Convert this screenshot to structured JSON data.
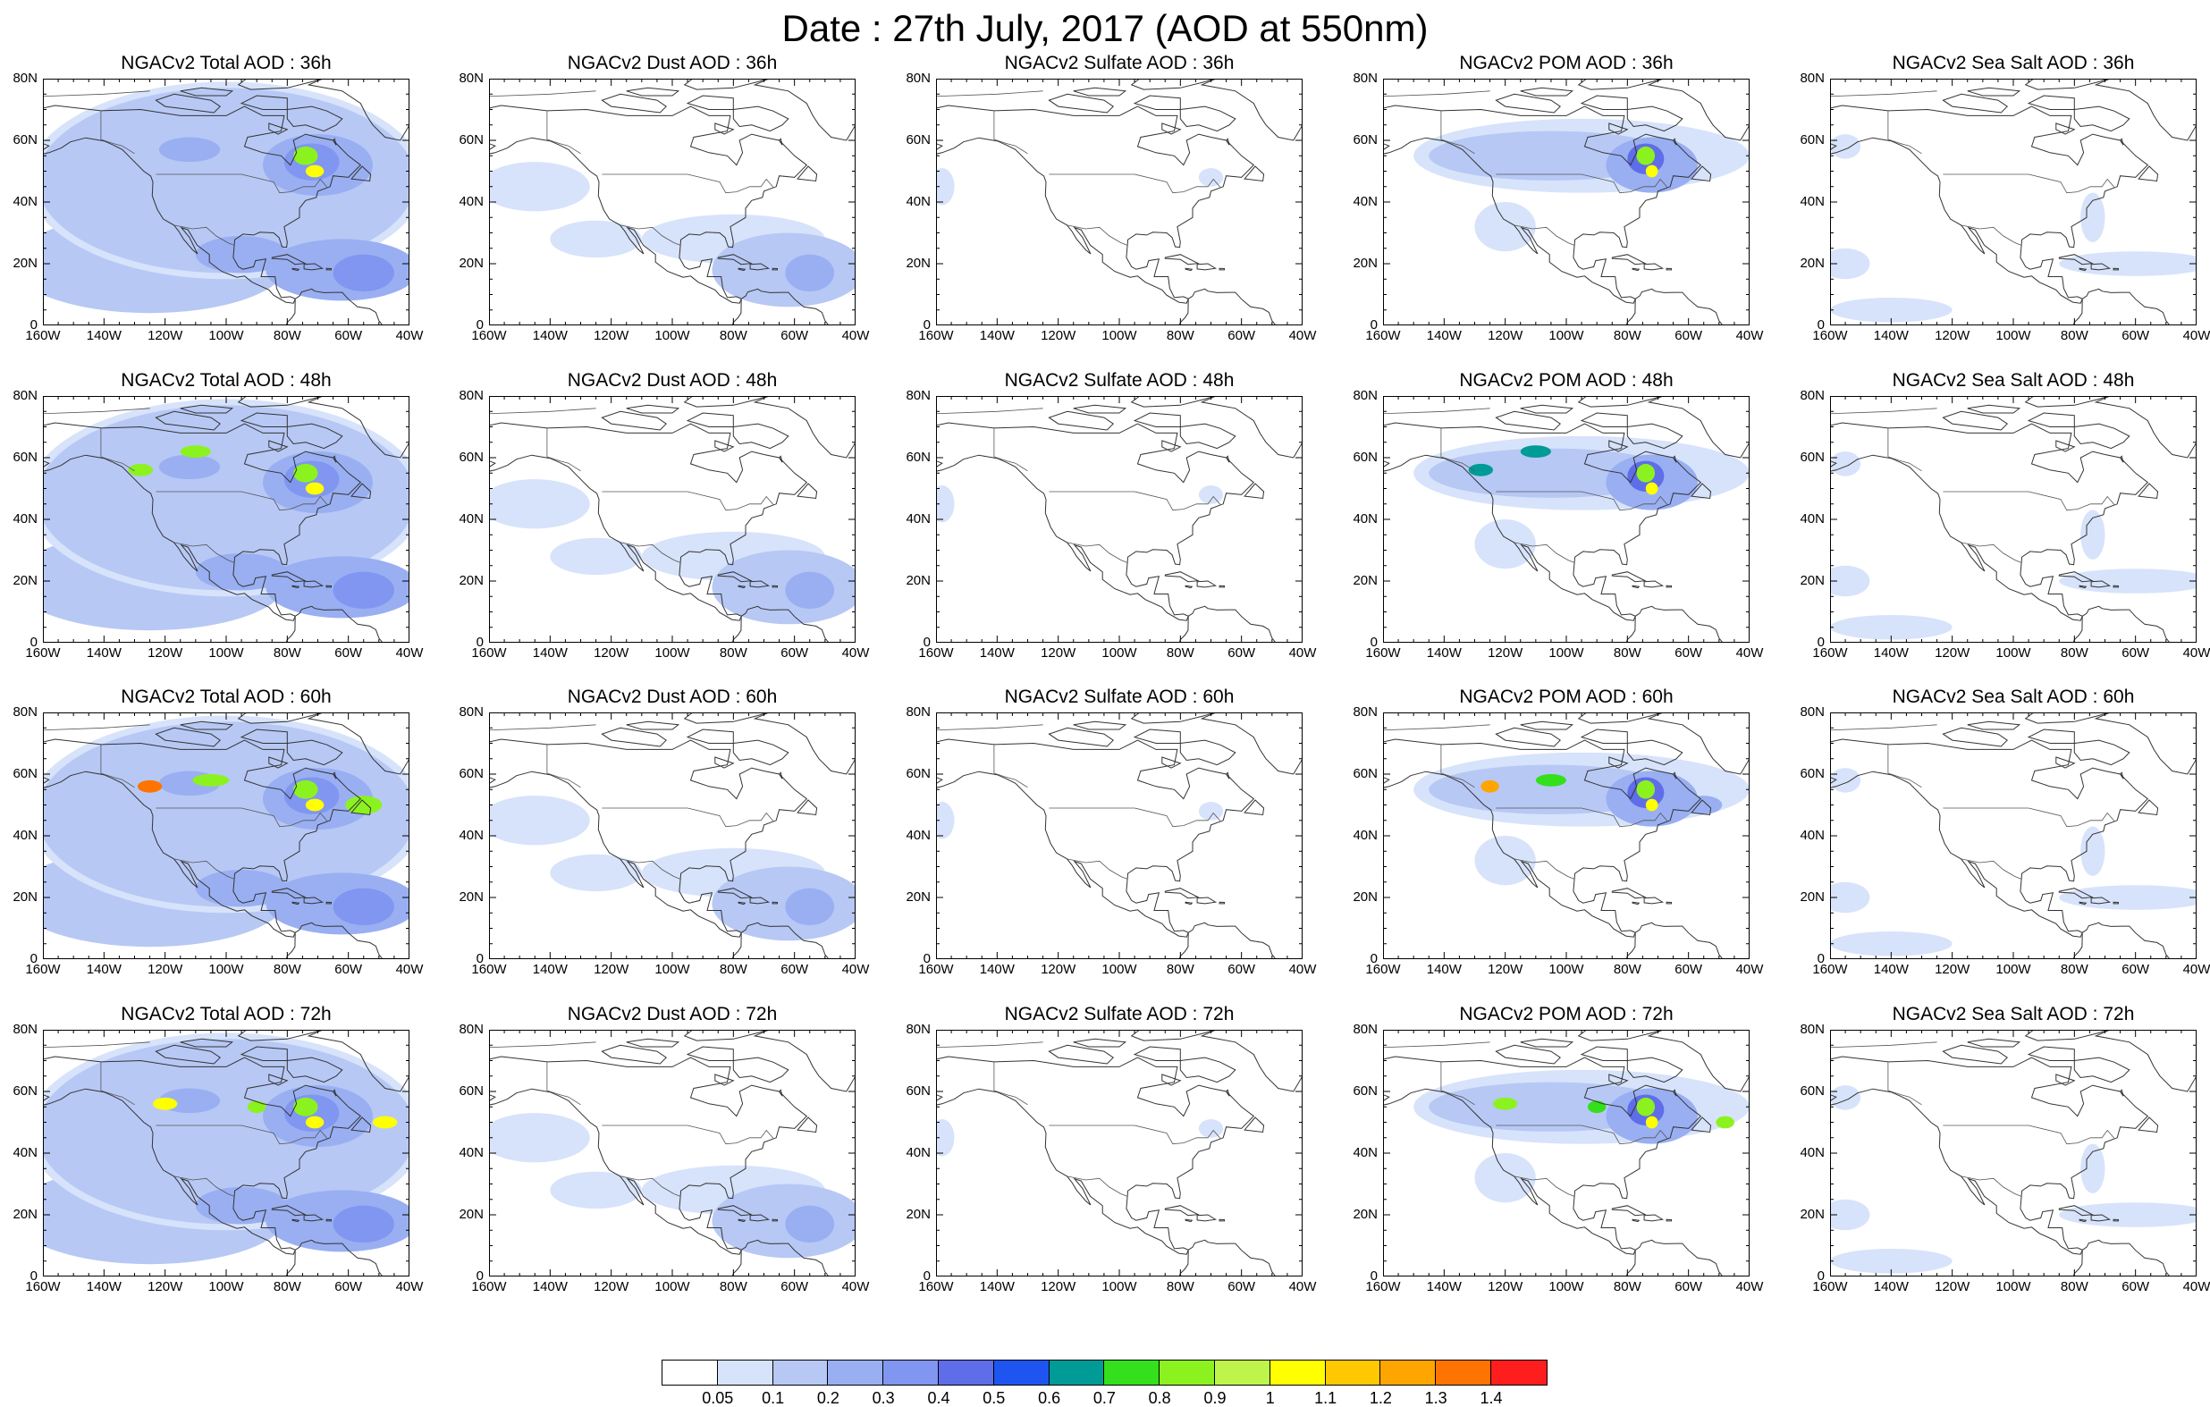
{
  "title": "Date : 27th July, 2017 (AOD at 550nm)",
  "lat_labels": [
    "80N",
    "60N",
    "40N",
    "20N",
    "0"
  ],
  "lon_labels": [
    "160W",
    "140W",
    "120W",
    "100W",
    "80W",
    "60W",
    "40W"
  ],
  "species": [
    {
      "id": "total",
      "label": "NGACv2 Total AOD"
    },
    {
      "id": "dust",
      "label": "NGACv2 Dust AOD"
    },
    {
      "id": "sulfate",
      "label": "NGACv2 Sulfate AOD"
    },
    {
      "id": "pom",
      "label": "NGACv2 POM AOD"
    },
    {
      "id": "seasalt",
      "label": "NGACv2 Sea Salt AOD"
    }
  ],
  "panels": [
    [
      {
        "title": "NGACv2 Total AOD : 36h"
      },
      {
        "title": "NGACv2 Dust AOD : 36h"
      },
      {
        "title": "NGACv2 Sulfate AOD : 36h"
      },
      {
        "title": "NGACv2 POM AOD : 36h"
      },
      {
        "title": "NGACv2 Sea Salt AOD : 36h"
      }
    ],
    [
      {
        "title": "NGACv2 Total AOD : 48h"
      },
      {
        "title": "NGACv2 Dust AOD : 48h"
      },
      {
        "title": "NGACv2 Sulfate AOD : 48h"
      },
      {
        "title": "NGACv2 POM AOD : 48h"
      },
      {
        "title": "NGACv2 Sea Salt AOD : 48h"
      }
    ],
    [
      {
        "title": "NGACv2 Total AOD : 60h"
      },
      {
        "title": "NGACv2 Dust AOD : 60h"
      },
      {
        "title": "NGACv2 Sulfate AOD : 60h"
      },
      {
        "title": "NGACv2 POM AOD : 60h"
      },
      {
        "title": "NGACv2 Sea Salt AOD : 60h"
      }
    ],
    [
      {
        "title": "NGACv2 Total AOD : 72h"
      },
      {
        "title": "NGACv2 Dust AOD : 72h"
      },
      {
        "title": "NGACv2 Sulfate AOD : 72h"
      },
      {
        "title": "NGACv2 POM AOD : 72h"
      },
      {
        "title": "NGACv2 Sea Salt  AOD : 72h"
      }
    ]
  ],
  "colorbar": {
    "colors": [
      "#ffffff",
      "#d7e3fb",
      "#b7c8f5",
      "#99aff2",
      "#8096f0",
      "#5f6de8",
      "#1e55f0",
      "#009b96",
      "#33e01b",
      "#8cf21f",
      "#bff54a",
      "#ffff00",
      "#ffc800",
      "#ffa500",
      "#ff7300",
      "#ff1e1e"
    ],
    "labels": [
      "0.05",
      "0.1",
      "0.2",
      "0.3",
      "0.4",
      "0.5",
      "0.6",
      "0.7",
      "0.8",
      "0.9",
      "1",
      "1.1",
      "1.2",
      "1.3",
      "1.4"
    ]
  },
  "map_extent": {
    "lon_min": -160,
    "lon_max": -40,
    "lat_min": 0,
    "lat_max": 80
  }
}
